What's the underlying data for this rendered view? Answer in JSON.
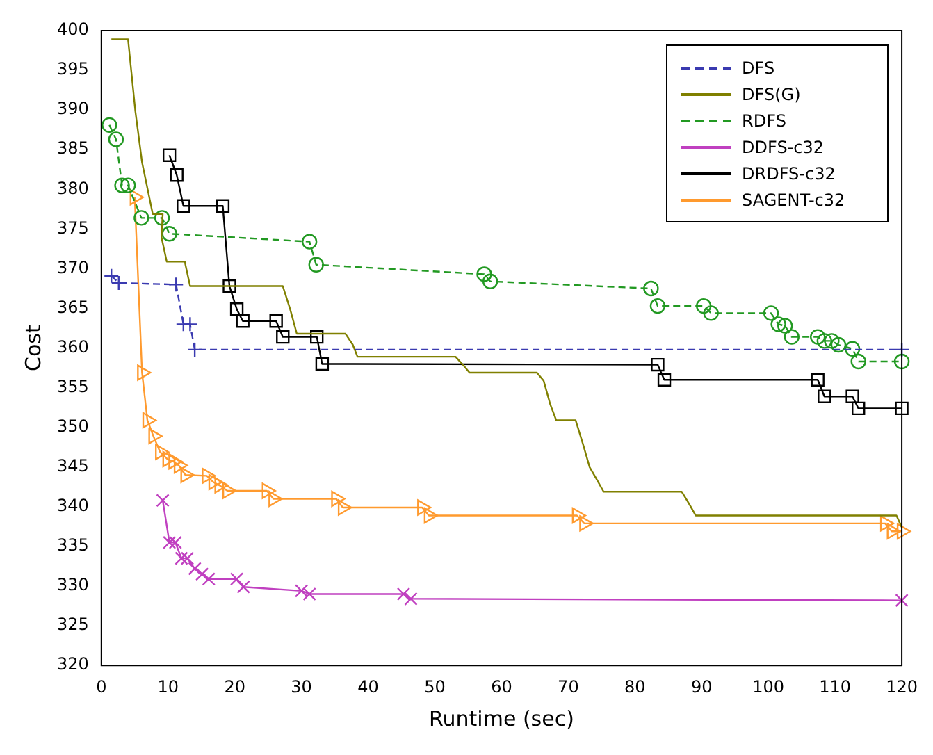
{
  "chart_data": {
    "type": "line",
    "xlabel": "Runtime (sec)",
    "ylabel": "Cost",
    "xlim": [
      0,
      120
    ],
    "ylim": [
      320,
      400
    ],
    "xticks": [
      0,
      10,
      20,
      30,
      40,
      50,
      60,
      70,
      80,
      90,
      100,
      110,
      120
    ],
    "yticks": [
      320,
      325,
      330,
      335,
      340,
      345,
      350,
      355,
      360,
      365,
      370,
      375,
      380,
      385,
      390,
      395,
      400
    ],
    "grid": false,
    "legend": "top right",
    "series": [
      {
        "name": "DFS",
        "color": "#3a3ab0",
        "line_style": "dashed",
        "marker": "cross",
        "x": [
          1.5,
          2.6,
          11.2,
          12.3,
          13.3,
          14,
          120
        ],
        "values": [
          369.1,
          368.2,
          368,
          363,
          363,
          359.8,
          359.8
        ]
      },
      {
        "name": "DFS(G)",
        "color": "#808000",
        "line_style": "solid",
        "marker": "none",
        "x": [
          1.5,
          4,
          5.1,
          6.1,
          7.7,
          9.2,
          9,
          9.8,
          12.5,
          13.3,
          27.2,
          28.3,
          29.3,
          36.6,
          37.7,
          38.4,
          53.1,
          54.2,
          55.2,
          65.3,
          66.3,
          67.3,
          68.2,
          71.1,
          72.2,
          73.2,
          74.3,
          75.3,
          87,
          88.1,
          89.1,
          119.2,
          120
        ],
        "values": [
          398.9,
          398.9,
          389.8,
          383.4,
          376.9,
          376.9,
          374,
          370.9,
          370.9,
          367.8,
          367.8,
          364.9,
          361.8,
          361.8,
          360.4,
          358.9,
          358.9,
          357.9,
          356.9,
          356.9,
          355.9,
          352.9,
          350.9,
          350.9,
          347.9,
          345,
          343.4,
          341.9,
          341.9,
          340.4,
          338.9,
          338.9,
          337.4
        ]
      },
      {
        "name": "RDFS",
        "color": "#229922",
        "line_style": "dashed",
        "marker": "circle",
        "x": [
          1.2,
          2.2,
          3.1,
          4,
          6,
          9.1,
          10.2,
          31.2,
          32.2,
          57.4,
          58.3,
          82.4,
          83.4,
          90.3,
          91.4,
          100.4,
          101.5,
          102.5,
          103.5,
          107.4,
          108.4,
          109.5,
          110.5,
          112.6,
          113.5,
          120
        ],
        "values": [
          388.1,
          386.3,
          380.5,
          380.5,
          376.4,
          376.4,
          374.4,
          373.4,
          370.5,
          369.3,
          368.4,
          367.5,
          365.3,
          365.3,
          364.4,
          364.4,
          363,
          362.8,
          361.4,
          361.4,
          360.9,
          360.9,
          360.4,
          359.9,
          358.3,
          358.3
        ]
      },
      {
        "name": "DDFS-c32",
        "color": "#c040c0",
        "line_style": "solid",
        "marker": "x",
        "x": [
          9.2,
          10.2,
          11.1,
          12,
          12.9,
          14,
          15.1,
          16.1,
          20.3,
          21.3,
          30,
          31.2,
          45.3,
          46.4,
          120
        ],
        "values": [
          340.8,
          335.5,
          335.5,
          333.5,
          333.5,
          332.2,
          331.5,
          330.9,
          330.9,
          329.9,
          329.4,
          329,
          329,
          328.4,
          328.2
        ]
      },
      {
        "name": "DRDFS-c32",
        "color": "#000000",
        "line_style": "solid",
        "marker": "square",
        "x": [
          10.2,
          11.3,
          12.3,
          18.2,
          19.2,
          20.3,
          21.2,
          26.2,
          27.2,
          32.3,
          33.1,
          83.4,
          84.4,
          107.4,
          108.4,
          112.6,
          113.5,
          120
        ],
        "values": [
          384.3,
          381.8,
          377.9,
          377.9,
          367.8,
          364.9,
          363.4,
          363.4,
          361.4,
          361.4,
          358,
          357.9,
          356,
          356,
          353.9,
          353.9,
          352.4,
          352.4
        ]
      },
      {
        "name": "SAGENT-c32",
        "color": "#ff9a2e",
        "line_style": "solid",
        "marker": "triangle",
        "x": [
          5,
          6.1,
          6.9,
          7.8,
          8.8,
          9.9,
          10.8,
          11.6,
          12.6,
          15.8,
          16.8,
          17.7,
          18.9,
          24.8,
          25.8,
          35.2,
          36.2,
          48.1,
          49.1,
          71.3,
          72.4,
          117.5,
          118.5,
          120
        ],
        "values": [
          379,
          356.9,
          350.9,
          348.9,
          346.9,
          346,
          345.7,
          345.2,
          344,
          343.9,
          343.1,
          342.7,
          342,
          342,
          341,
          341,
          339.9,
          339.9,
          338.9,
          338.9,
          337.9,
          337.9,
          336.9,
          336.9
        ]
      }
    ]
  }
}
